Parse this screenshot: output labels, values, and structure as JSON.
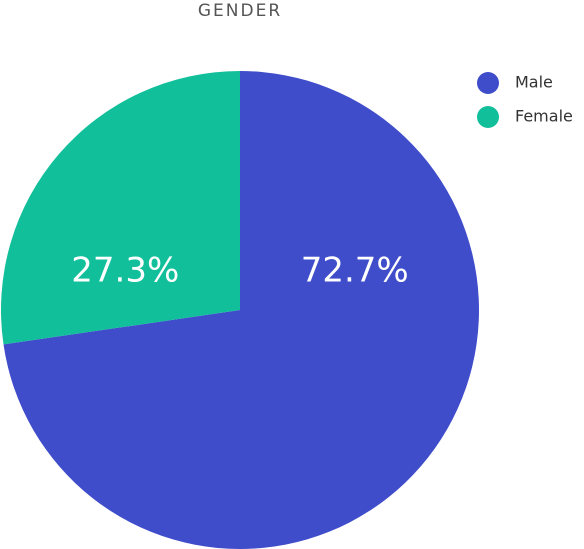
{
  "chart_data": {
    "type": "pie",
    "title": "GENDER",
    "categories": [
      "Male",
      "Female"
    ],
    "values": [
      72.7,
      27.3
    ],
    "value_labels": [
      "72.7%",
      "27.3%"
    ],
    "colors": [
      "#3f4dcb",
      "#12bf9b"
    ],
    "legend": "top-right"
  }
}
